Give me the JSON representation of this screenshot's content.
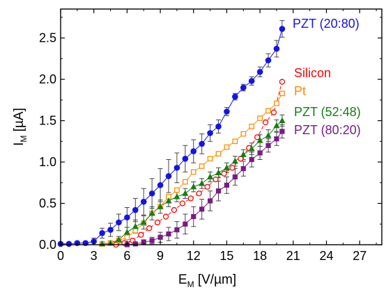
{
  "chart_data": {
    "type": "scatter",
    "xlabel": {
      "main": "E",
      "sub": "M",
      "unit": " [V/µm]"
    },
    "ylabel": {
      "main": "I",
      "sub": "M",
      "unit": " [µA]"
    },
    "xlim": [
      0,
      29
    ],
    "ylim": [
      0,
      2.85
    ],
    "xticks": [
      0,
      3,
      6,
      9,
      12,
      15,
      18,
      21,
      24,
      27
    ],
    "yticks": [
      0.0,
      0.5,
      1.0,
      1.5,
      2.0,
      2.5
    ],
    "xtick_labels": [
      "0",
      "3",
      "6",
      "9",
      "12",
      "15",
      "18",
      "21",
      "24",
      "27"
    ],
    "ytick_labels": [
      "0.0",
      "0.5",
      "1.0",
      "1.5",
      "2.0",
      "2.5"
    ],
    "grid": false,
    "series": [
      {
        "name": "PZT (20:80)",
        "color": "#1414e6",
        "marker": "circle-filled",
        "x": [
          0,
          0.75,
          1.5,
          2.25,
          3,
          3.75,
          4.5,
          5.25,
          6,
          6.75,
          7.5,
          8.25,
          9,
          9.75,
          10.5,
          11.25,
          12,
          12.75,
          13.5,
          14.25,
          15,
          15.75,
          16.5,
          17.25,
          18,
          18.75,
          19.5,
          20
        ],
        "y": [
          0.01,
          0.01,
          0.02,
          0.02,
          0.04,
          0.14,
          0.18,
          0.27,
          0.33,
          0.42,
          0.52,
          0.62,
          0.72,
          0.83,
          0.93,
          1.04,
          1.13,
          1.22,
          1.35,
          1.43,
          1.61,
          1.79,
          1.9,
          1.98,
          2.09,
          2.23,
          2.37,
          2.61
        ],
        "err": [
          0.01,
          0.01,
          0.02,
          0.02,
          0.04,
          0.06,
          0.08,
          0.1,
          0.12,
          0.14,
          0.16,
          0.18,
          0.2,
          0.2,
          0.18,
          0.16,
          0.14,
          0.12,
          0.1,
          0.08,
          0.05,
          0.04,
          0.04,
          0.05,
          0.06,
          0.08,
          0.1,
          0.1
        ]
      },
      {
        "name": "Silicon",
        "color": "#ff0000",
        "marker": "circle-open",
        "dashed": true,
        "x": [
          5,
          5.75,
          6.5,
          7.25,
          8,
          8.75,
          9.5,
          10.25,
          11,
          11.75,
          12.5,
          13.25,
          14,
          14.75,
          15.5,
          16.25,
          17,
          17.75,
          18.5,
          19.25,
          20
        ],
        "y": [
          0.0,
          0.02,
          0.05,
          0.12,
          0.2,
          0.27,
          0.34,
          0.42,
          0.5,
          0.56,
          0.62,
          0.7,
          0.79,
          0.86,
          0.93,
          1.04,
          1.17,
          1.3,
          1.48,
          1.6,
          1.97
        ],
        "err": []
      },
      {
        "name": "Pt",
        "color": "#ff8c00",
        "marker": "square-open",
        "x": [
          3.75,
          4.5,
          5.25,
          6,
          6.75,
          7.5,
          8.25,
          9,
          9.75,
          10.5,
          11.25,
          12,
          12.75,
          13.5,
          14.25,
          15,
          15.75,
          16.5,
          17.25,
          18,
          18.75,
          19.5,
          20
        ],
        "y": [
          0.01,
          0.02,
          0.05,
          0.09,
          0.17,
          0.26,
          0.38,
          0.46,
          0.58,
          0.66,
          0.76,
          0.88,
          0.95,
          1.04,
          1.1,
          1.18,
          1.25,
          1.34,
          1.43,
          1.53,
          1.62,
          1.71,
          1.83
        ],
        "err": []
      },
      {
        "name": "PZT (52:48)",
        "color": "#138013",
        "marker": "triangle-filled",
        "x": [
          3.75,
          4.5,
          5.25,
          6,
          6.75,
          7.5,
          8.25,
          9,
          9.75,
          10.5,
          11.25,
          12,
          12.75,
          13.5,
          14.25,
          15,
          15.75,
          16.5,
          17.25,
          18,
          18.75,
          19.5,
          20
        ],
        "y": [
          0.01,
          0.02,
          0.06,
          0.15,
          0.22,
          0.27,
          0.38,
          0.46,
          0.53,
          0.58,
          0.62,
          0.7,
          0.74,
          0.82,
          0.87,
          0.93,
          1.01,
          1.09,
          1.16,
          1.26,
          1.32,
          1.44,
          1.5
        ],
        "err": [
          0.01,
          0.02,
          0.04,
          0.06,
          0.08,
          0.08,
          0.08,
          0.08,
          0.07,
          0.06,
          0.06,
          0.06,
          0.06,
          0.06,
          0.06,
          0.06,
          0.06,
          0.06,
          0.07,
          0.07,
          0.07,
          0.07,
          0.07
        ]
      },
      {
        "name": "PZT (80:20)",
        "color": "#7a1a87",
        "marker": "square-filled",
        "x": [
          6,
          6.75,
          7.5,
          8.25,
          9,
          9.75,
          10.5,
          11.25,
          12,
          12.75,
          13.5,
          14.25,
          15,
          15.75,
          16.5,
          17.25,
          18,
          18.75,
          19.5,
          20
        ],
        "y": [
          0.0,
          0.01,
          0.03,
          0.05,
          0.09,
          0.13,
          0.18,
          0.25,
          0.34,
          0.43,
          0.53,
          0.65,
          0.72,
          0.82,
          0.92,
          1.03,
          1.11,
          1.2,
          1.28,
          1.37
        ],
        "err": [
          0.0,
          0.01,
          0.03,
          0.04,
          0.06,
          0.08,
          0.1,
          0.12,
          0.12,
          0.12,
          0.12,
          0.12,
          0.1,
          0.1,
          0.09,
          0.09,
          0.08,
          0.08,
          0.08,
          0.08
        ]
      }
    ]
  }
}
